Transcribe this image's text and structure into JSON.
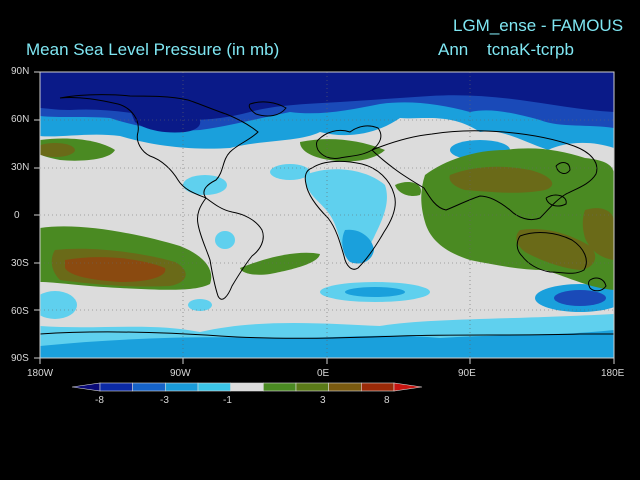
{
  "header": {
    "title_left": "Mean Sea Level Pressure (in mb)",
    "title_right_line1": "LGM_ense - FAMOUS",
    "title_right_season": "Ann",
    "title_right_experiment": "tcnaK-tcrpb"
  },
  "axes": {
    "y_labels": [
      "90N",
      "60N",
      "30N",
      "0",
      "30S",
      "60S",
      "90S"
    ],
    "x_labels": [
      "180W",
      "90W",
      "0E",
      "90E",
      "180E"
    ]
  },
  "colorbar": {
    "tick_labels": [
      "-8",
      "-3",
      "-1",
      "3",
      "8"
    ],
    "colors": [
      "#0a0a78",
      "#0b2aa5",
      "#1663c8",
      "#1a9ad8",
      "#3cc4e6",
      "#dcdcdc",
      "#4a8a22",
      "#5a7a18",
      "#7a5a10",
      "#9a2a08",
      "#c81410"
    ]
  },
  "map_colors": {
    "ocean_neutral": "#dcdcdc",
    "deep_low": "#0a1a88",
    "mid_low": "#1a4ab8",
    "light_low": "#1aa0dc",
    "pale_low": "#5fd0ee",
    "green_high": "#4a8a22",
    "olive_high": "#6a6a18",
    "brown_high": "#8a4a10",
    "coast": "#000000"
  }
}
